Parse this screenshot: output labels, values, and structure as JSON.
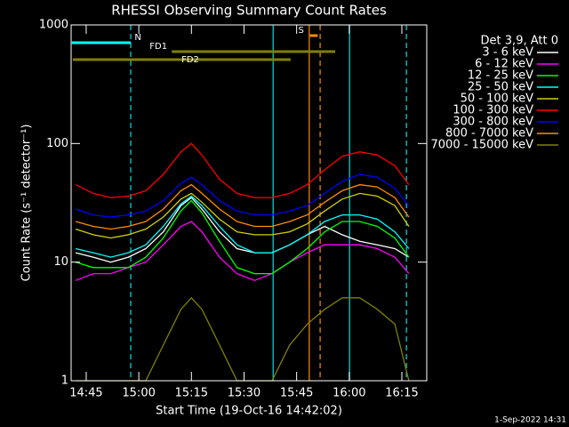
{
  "chart_data": {
    "type": "line",
    "title": "RHESSI Observing Summary Count Rates",
    "xlabel": "Start Time (19-Oct-16 14:42:02)",
    "ylabel": "Count Rate (s⁻¹ detector⁻¹)",
    "legend_title": "Det 3,9, Att 0",
    "footer": "1-Sep-2022 14:31",
    "log_y": true,
    "x": [
      42,
      47,
      52,
      57,
      62,
      67,
      72,
      75,
      78,
      83,
      88,
      93,
      98,
      103,
      108,
      113,
      118,
      123,
      128,
      133,
      137
    ],
    "xlim": [
      40.7,
      142.1
    ],
    "xticks": [
      {
        "value": 45,
        "label": "14:45"
      },
      {
        "value": 60,
        "label": "15:00"
      },
      {
        "value": 75,
        "label": "15:15"
      },
      {
        "value": 90,
        "label": "15:30"
      },
      {
        "value": 105,
        "label": "15:45"
      },
      {
        "value": 120,
        "label": "16:00"
      },
      {
        "value": 135,
        "label": "16:15"
      }
    ],
    "ylim": [
      1,
      1000
    ],
    "yticks": [
      1,
      10,
      100,
      1000
    ],
    "series": [
      {
        "name": "3 - 6 keV",
        "color": "#ffffff",
        "values": [
          12,
          11,
          10,
          11,
          13,
          18,
          30,
          35,
          28,
          18,
          13,
          12,
          12,
          14,
          17,
          20,
          17,
          15,
          14,
          13,
          11
        ]
      },
      {
        "name": "6 - 12 keV",
        "color": "#ff00ff",
        "values": [
          7,
          8,
          8,
          9,
          10,
          14,
          20,
          22,
          18,
          11,
          8,
          7,
          8,
          10,
          12,
          14,
          14,
          14,
          13,
          11,
          8
        ]
      },
      {
        "name": "12 - 25 keV",
        "color": "#00ff00",
        "values": [
          10,
          9,
          9,
          9,
          11,
          16,
          27,
          33,
          26,
          15,
          9,
          8,
          8,
          10,
          13,
          18,
          22,
          22,
          20,
          16,
          11
        ]
      },
      {
        "name": "25 - 50 keV",
        "color": "#00ffff",
        "values": [
          13,
          12,
          11,
          12,
          14,
          20,
          31,
          36,
          30,
          20,
          14,
          12,
          12,
          14,
          17,
          22,
          25,
          25,
          23,
          18,
          13
        ]
      },
      {
        "name": "50 - 100 keV",
        "color": "#d0d000",
        "values": [
          19,
          17,
          16,
          17,
          19,
          24,
          34,
          38,
          32,
          23,
          18,
          17,
          17,
          18,
          21,
          27,
          34,
          38,
          36,
          30,
          20
        ]
      },
      {
        "name": "100 - 300 keV",
        "color": "#ff0000",
        "values": [
          45,
          38,
          35,
          36,
          40,
          55,
          85,
          100,
          80,
          50,
          38,
          35,
          35,
          38,
          45,
          60,
          78,
          85,
          80,
          65,
          45
        ]
      },
      {
        "name": "300 - 800 keV",
        "color": "#0000ff",
        "values": [
          28,
          25,
          24,
          25,
          27,
          33,
          46,
          52,
          45,
          33,
          27,
          25,
          25,
          27,
          30,
          38,
          48,
          55,
          52,
          42,
          30
        ]
      },
      {
        "name": "800 - 7000 keV",
        "color": "#ff8c00",
        "values": [
          22,
          20,
          19,
          20,
          22,
          28,
          40,
          45,
          38,
          28,
          22,
          20,
          20,
          22,
          25,
          32,
          40,
          45,
          43,
          35,
          24
        ]
      },
      {
        "name": "7000 - 15000 keV",
        "color": "#808000",
        "values": [
          1,
          1,
          1,
          1,
          1,
          2,
          4,
          5,
          4,
          2,
          1,
          1,
          1,
          2,
          3,
          4,
          5,
          5,
          4,
          3,
          1
        ]
      }
    ],
    "vlines": [
      {
        "x": 57.7,
        "color": "#00e0e0",
        "dashed": true
      },
      {
        "x": 98.3,
        "color": "#00e0e0",
        "dashed": false
      },
      {
        "x": 108.6,
        "color": "#ff8c00",
        "dashed": false
      },
      {
        "x": 111.7,
        "color": "#ff8c00",
        "dashed": true
      },
      {
        "x": 120.1,
        "color": "#00e0e0",
        "dashed": false
      },
      {
        "x": 136.3,
        "color": "#00e0e0",
        "dashed": true
      }
    ],
    "intervals": [
      {
        "label": "N",
        "start": 40.9,
        "end": 57.7,
        "color": "#00ffff"
      },
      {
        "label": "S",
        "start": 108.8,
        "end": 111.0,
        "color": "#ff8c00"
      },
      {
        "label": "FD1",
        "start": 69.4,
        "end": 116.0,
        "color": "#808000"
      },
      {
        "label": "FD2",
        "start": 41.2,
        "end": 103.3,
        "color": "#808000"
      }
    ]
  }
}
